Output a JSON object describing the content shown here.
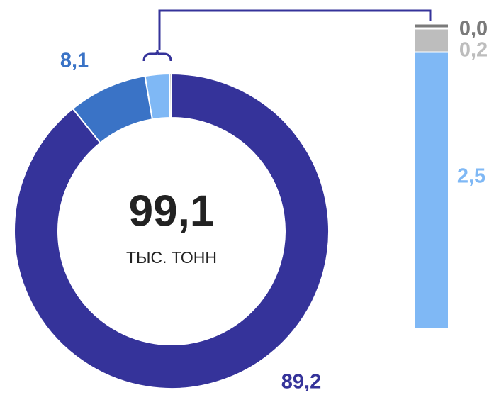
{
  "chart_data": {
    "type": "donut",
    "values": [
      89.2,
      8.1,
      2.5,
      0.2,
      0.0
    ],
    "value_labels": [
      "89,2",
      "8,1",
      "2,5",
      "0,2",
      "0,0"
    ],
    "colors": [
      "#35339a",
      "#3a73c6",
      "#7fb8f5",
      "#bdbdbd",
      "#7a7a7a"
    ],
    "total": {
      "value": 99.1,
      "label": "99,1"
    },
    "unit": "ТЫС. ТОНН"
  }
}
